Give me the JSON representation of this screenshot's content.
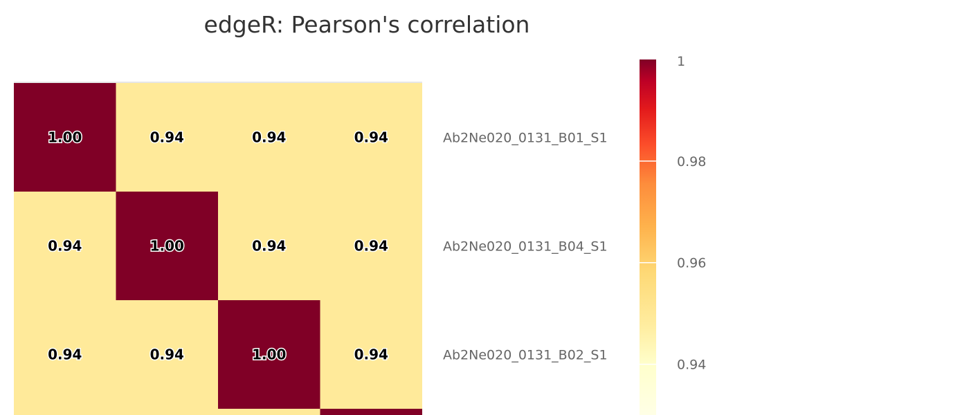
{
  "chart_data": {
    "type": "heatmap",
    "title": "edgeR: Pearson's correlation",
    "rows": [
      "Ab2Ne020_0131_B01_S1",
      "Ab2Ne020_0131_B04_S1",
      "Ab2Ne020_0131_B02_S1",
      ""
    ],
    "columns": [
      "",
      "",
      "",
      ""
    ],
    "values": [
      [
        1.0,
        0.94,
        0.94,
        0.94
      ],
      [
        0.94,
        1.0,
        0.94,
        0.94
      ],
      [
        0.94,
        0.94,
        1.0,
        0.94
      ],
      [
        0.94,
        0.94,
        0.94,
        1.0
      ]
    ],
    "cell_labels": [
      [
        "1.00",
        "0.94",
        "0.94",
        "0.94"
      ],
      [
        "0.94",
        "1.00",
        "0.94",
        "0.94"
      ],
      [
        "0.94",
        "0.94",
        "1.00",
        "0.94"
      ],
      [
        "",
        "",
        "",
        ""
      ]
    ],
    "color_scale": {
      "min": 0.93,
      "max": 1.0,
      "ticks": [
        1,
        0.98,
        0.96,
        0.94
      ],
      "tick_labels": [
        "1",
        "0.98",
        "0.96",
        "0.94"
      ],
      "colors": [
        "#ffffcc",
        "#ffeda0",
        "#fed976",
        "#feb24c",
        "#fd8d3c",
        "#fc4e2a",
        "#e31a1c",
        "#bd0026",
        "#800026"
      ]
    },
    "legend_placement": "right"
  }
}
